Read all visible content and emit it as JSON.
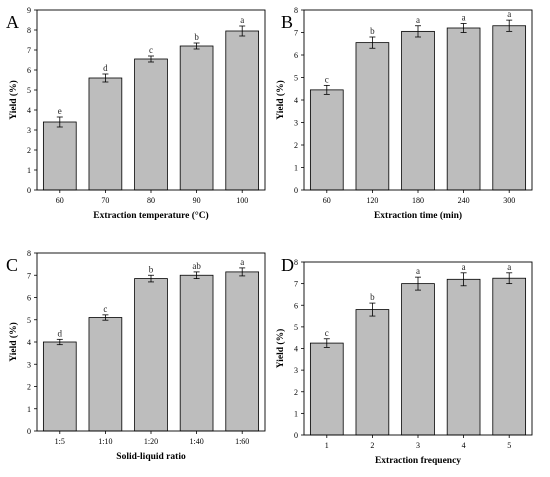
{
  "chart_data": [
    {
      "panel_label": "A",
      "type": "bar",
      "categories": [
        "60",
        "70",
        "80",
        "90",
        "100"
      ],
      "values": [
        3.4,
        5.6,
        6.55,
        7.2,
        7.95
      ],
      "errors": [
        0.25,
        0.2,
        0.15,
        0.15,
        0.25
      ],
      "significance": [
        "e",
        "d",
        "c",
        "b",
        "a"
      ],
      "xlabel": "Extraction temperature (°C)",
      "ylabel": "Yield (%)",
      "ylim": [
        0,
        9
      ],
      "yticks": [
        0,
        1,
        2,
        3,
        4,
        5,
        6,
        7,
        8,
        9
      ],
      "bar_color": "#bdbdbd"
    },
    {
      "panel_label": "B",
      "type": "bar",
      "categories": [
        "60",
        "120",
        "180",
        "240",
        "300"
      ],
      "values": [
        4.45,
        6.55,
        7.05,
        7.2,
        7.3
      ],
      "errors": [
        0.2,
        0.25,
        0.25,
        0.2,
        0.25
      ],
      "significance": [
        "c",
        "b",
        "a",
        "a",
        "a"
      ],
      "xlabel": "Extraction time (min)",
      "ylabel": "Yield (%)",
      "ylim": [
        0,
        8
      ],
      "yticks": [
        0,
        1,
        2,
        3,
        4,
        5,
        6,
        7,
        8
      ],
      "bar_color": "#bdbdbd"
    },
    {
      "panel_label": "C",
      "type": "bar",
      "categories": [
        "1:5",
        "1:10",
        "1:20",
        "1:40",
        "1:60"
      ],
      "values": [
        4.0,
        5.1,
        6.85,
        7.0,
        7.15
      ],
      "errors": [
        0.12,
        0.12,
        0.15,
        0.15,
        0.18
      ],
      "significance": [
        "d",
        "c",
        "b",
        "ab",
        "a"
      ],
      "xlabel": "Solid-liquid ratio",
      "ylabel": "Yield (%)",
      "ylim": [
        0,
        8
      ],
      "yticks": [
        0,
        1,
        2,
        3,
        4,
        5,
        6,
        7,
        8
      ],
      "bar_color": "#bdbdbd"
    },
    {
      "panel_label": "D",
      "type": "bar",
      "categories": [
        "1",
        "2",
        "3",
        "4",
        "5"
      ],
      "values": [
        4.25,
        5.8,
        7.0,
        7.2,
        7.25
      ],
      "errors": [
        0.2,
        0.3,
        0.3,
        0.3,
        0.25
      ],
      "significance": [
        "c",
        "b",
        "a",
        "a",
        "a"
      ],
      "xlabel": "Extraction frequency",
      "ylabel": "Yield (%)",
      "ylim": [
        0,
        8
      ],
      "yticks": [
        0,
        1,
        2,
        3,
        4,
        5,
        6,
        7,
        8
      ],
      "bar_color": "#bdbdbd"
    }
  ]
}
